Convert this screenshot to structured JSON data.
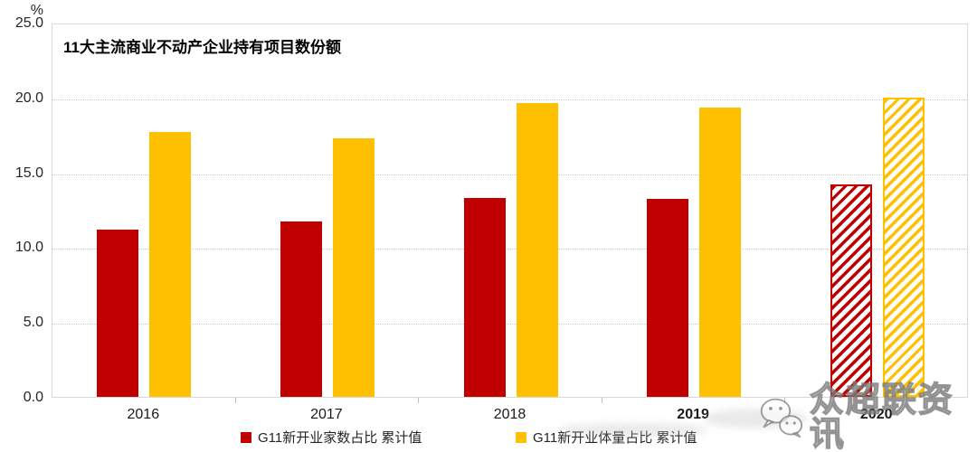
{
  "title": "11大主流商业不动产企业持有项目数份额",
  "y_axis": {
    "unit": "%",
    "tick_labels": [
      "25.0",
      "20.0",
      "15.0",
      "10.0",
      "5.0",
      "0.0"
    ]
  },
  "chart_data": {
    "type": "bar",
    "title": "11大主流商业不动产企业持有项目数份额",
    "categories": [
      "2016",
      "2017",
      "2018",
      "2019",
      "2020"
    ],
    "series": [
      {
        "name": "G11新开业家数占比 累计值",
        "color": "#C00000",
        "values": [
          11.2,
          11.7,
          13.3,
          13.2,
          14.2
        ]
      },
      {
        "name": "G11新开业体量占比 累计值",
        "color": "#FFC000",
        "values": [
          17.7,
          17.3,
          19.6,
          19.3,
          20.0
        ]
      }
    ],
    "hatched_categories": [
      "2020"
    ],
    "bold_x_labels": [
      "2019",
      "2020"
    ],
    "ylabel": "%",
    "ylim": [
      0,
      25
    ],
    "ytick_step": 5,
    "grid": "horizontal-dotted",
    "legend_position": "bottom"
  },
  "legend": {
    "items": [
      {
        "label": "G11新开业家数占比 累计值",
        "color": "#C00000"
      },
      {
        "label": "G11新开业体量占比 累计值",
        "color": "#FFC000"
      }
    ]
  },
  "watermark": {
    "text": "众超联资讯",
    "icon": "wechat-logo"
  },
  "colors": {
    "series_red": "#C00000",
    "series_yellow": "#FFC000",
    "gridline": "#c9c9c9",
    "plot_border": "#d9d9d9",
    "axis_text": "#262626"
  }
}
